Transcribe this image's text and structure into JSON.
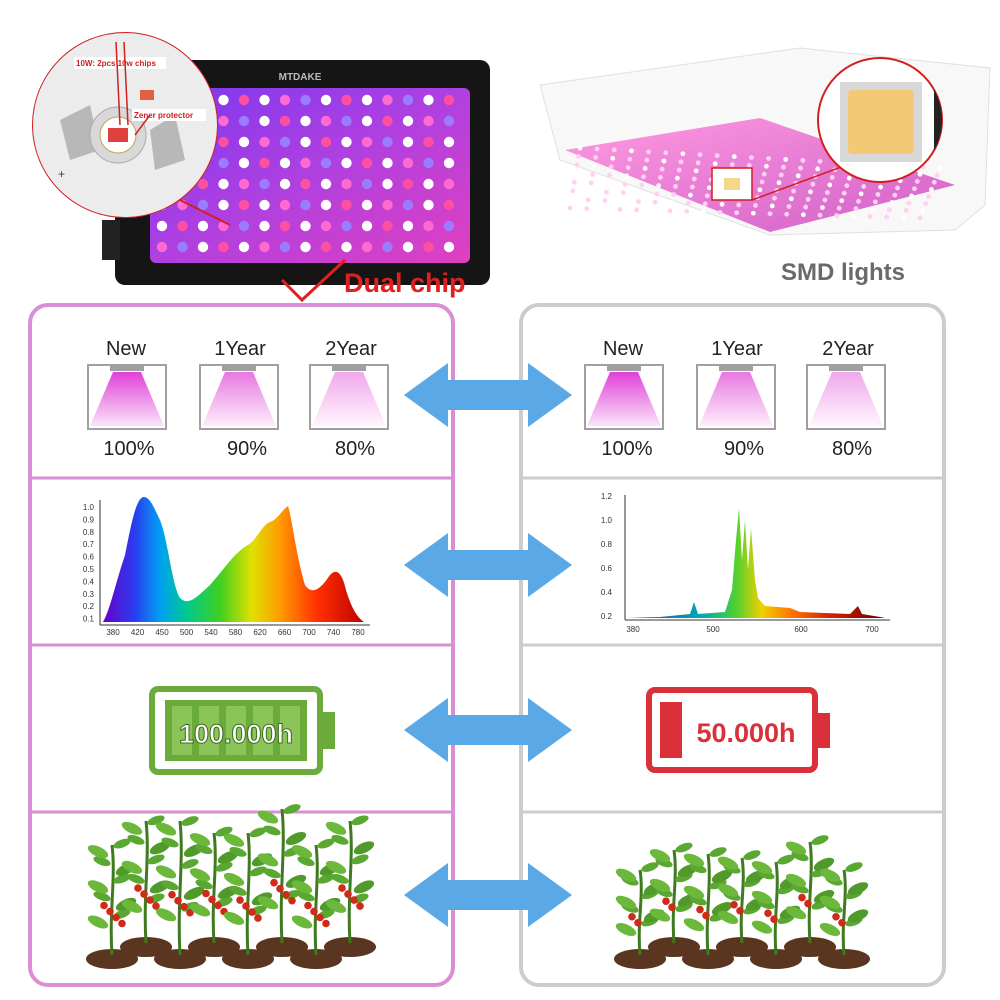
{
  "header": {
    "dual_chip_label": "Dual chip",
    "smd_label": "SMD lights",
    "chip_callout": "10W: 2pcs 10w chips",
    "zener_callout": "Zener protector",
    "brand": "MTDAKE",
    "polarity_minus": "+"
  },
  "decay": {
    "left": [
      {
        "label": "New",
        "percent": "100%",
        "level": 1.0
      },
      {
        "label": "1Year",
        "percent": "90%",
        "level": 0.9
      },
      {
        "label": "2Year",
        "percent": "80%",
        "level": 0.8
      }
    ],
    "right": [
      {
        "label": "New",
        "percent": "100%",
        "level": 1.0
      },
      {
        "label": "1Year",
        "percent": "90%",
        "level": 0.9
      },
      {
        "label": "2Year",
        "percent": "80%",
        "level": 0.8
      }
    ]
  },
  "spectrum_left": {
    "y_ticks": [
      "1.0",
      "0.9",
      "0.8",
      "0.7",
      "0.6",
      "0.5",
      "0.4",
      "0.3",
      "0.2",
      "0.1"
    ],
    "x_ticks": [
      "380",
      "420",
      "450",
      "500",
      "540",
      "580",
      "620",
      "660",
      "700",
      "740",
      "780"
    ]
  },
  "spectrum_right": {
    "y_ticks": [
      "1.2",
      "1.0",
      "0.8",
      "0.6",
      "0.4",
      "0.2"
    ],
    "x_ticks": [
      "380",
      "500",
      "600",
      "700"
    ]
  },
  "lifespan": {
    "left": {
      "text": "100.000h",
      "color": "#6aab3c"
    },
    "right": {
      "text": "50.000h",
      "color": "#d9303a"
    }
  },
  "colors": {
    "left_frame": "#d98ed6",
    "right_frame": "#cccccc",
    "arrow": "#5aa8e6",
    "accent_red": "#e02020"
  }
}
